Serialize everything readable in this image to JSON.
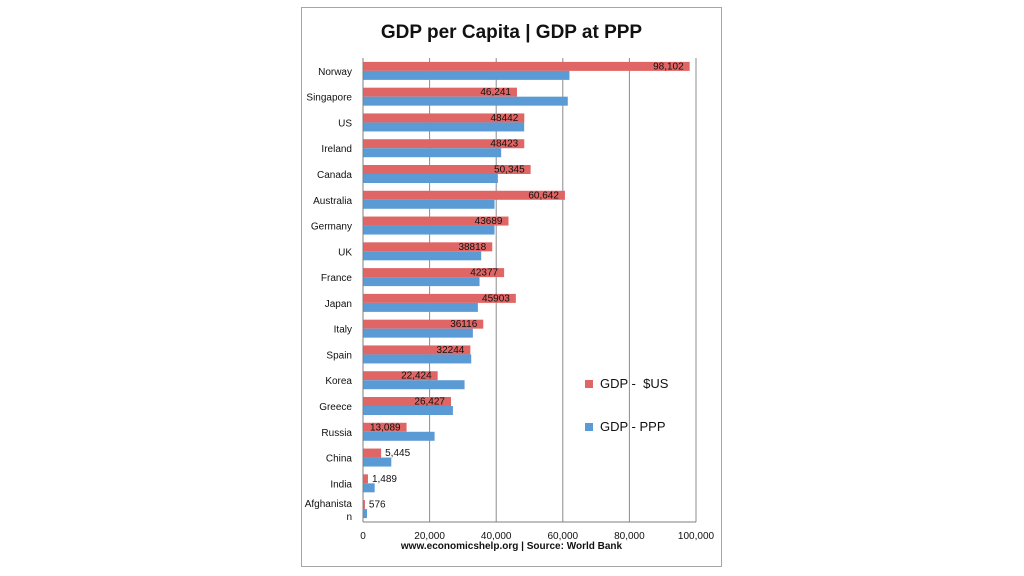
{
  "chart_data": {
    "type": "bar",
    "orientation": "horizontal",
    "title": "GDP per Capita | GDP at PPP",
    "source_note": "www.economicshelp.org | Source: World Bank",
    "categories": [
      "Norway",
      "Singapore",
      "US",
      "Ireland",
      "Canada",
      "Australia",
      "Germany",
      "UK",
      "France",
      "Japan",
      "Italy",
      "Spain",
      "Korea",
      "Greece",
      "Russia",
      "China",
      "India",
      "Afghanistan"
    ],
    "category_display": [
      "Norway",
      "Singapore",
      "US",
      "Ireland",
      "Canada",
      "Australia",
      "Germany",
      "UK",
      "France",
      "Japan",
      "Italy",
      "Spain",
      "Korea",
      "Greece",
      "Russia",
      "China",
      "India",
      "Afghanista\nn"
    ],
    "series": [
      {
        "name": "GDP -  $US",
        "color": "#e06666",
        "values": [
          98102,
          46241,
          48442,
          48423,
          50345,
          60642,
          43689,
          38818,
          42377,
          45903,
          36116,
          32244,
          22424,
          26427,
          13089,
          5445,
          1489,
          576
        ],
        "data_labels": [
          "98,102",
          "46,241",
          "48442",
          "48423",
          "50,345",
          "60,642",
          "43689",
          "38818",
          "42377",
          "45903",
          "36116",
          "32244",
          "22,424",
          "26,427",
          "13,089",
          "5,445",
          "1,489",
          "576"
        ]
      },
      {
        "name": "GDP - PPP",
        "color": "#5b9bd5",
        "values": [
          62000,
          61500,
          48400,
          41500,
          40500,
          39500,
          39500,
          35500,
          35000,
          34500,
          33000,
          32500,
          30500,
          27000,
          21500,
          8500,
          3500,
          1200
        ]
      }
    ],
    "xlim": [
      0,
      100000
    ],
    "xticks": [
      0,
      20000,
      40000,
      60000,
      80000,
      100000
    ],
    "xtick_labels": [
      "0",
      "20,000",
      "40,000",
      "60,000",
      "80,000",
      "100,000"
    ],
    "grid": true,
    "legend_position": "right"
  }
}
